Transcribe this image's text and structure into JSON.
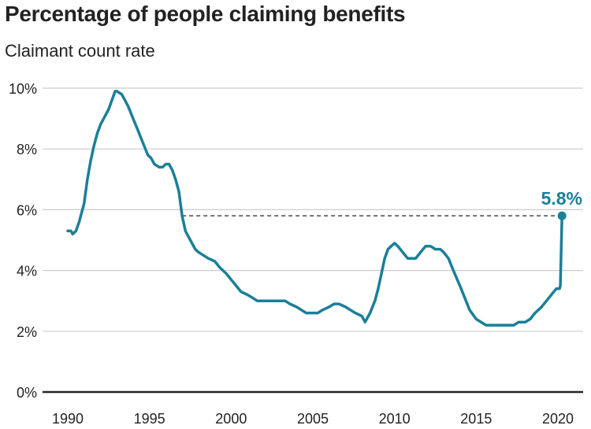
{
  "chart_data": {
    "type": "line",
    "title": "Percentage of people claiming benefits",
    "subtitle": "Claimant count rate",
    "xlabel": "",
    "ylabel": "",
    "xlim": [
      1988.6,
      2021.7
    ],
    "ylim": [
      0,
      10
    ],
    "grid": true,
    "legend": "none",
    "y_ticks": [
      {
        "value": 0,
        "label": "0%"
      },
      {
        "value": 2,
        "label": "2%"
      },
      {
        "value": 4,
        "label": "4%"
      },
      {
        "value": 6,
        "label": "6%"
      },
      {
        "value": 8,
        "label": "8%"
      },
      {
        "value": 10,
        "label": "10%"
      }
    ],
    "x_ticks": [
      {
        "value": 1990,
        "label": "1990"
      },
      {
        "value": 1995,
        "label": "1995"
      },
      {
        "value": 2000,
        "label": "2000"
      },
      {
        "value": 2005,
        "label": "2005"
      },
      {
        "value": 2010,
        "label": "2010"
      },
      {
        "value": 2015,
        "label": "2015"
      },
      {
        "value": 2020,
        "label": "2020"
      }
    ],
    "series": [
      {
        "name": "Claimant count rate",
        "color": "#1b7f98",
        "x": [
          1990.0,
          1990.2,
          1990.3,
          1990.5,
          1990.7,
          1991.0,
          1991.2,
          1991.4,
          1991.6,
          1991.8,
          1992.0,
          1992.3,
          1992.5,
          1992.7,
          1992.9,
          1993.0,
          1993.3,
          1993.5,
          1993.7,
          1994.0,
          1994.3,
          1994.6,
          1994.9,
          1995.1,
          1995.3,
          1995.6,
          1995.8,
          1996.0,
          1996.2,
          1996.4,
          1996.6,
          1996.8,
          1997.0,
          1997.2,
          1997.5,
          1997.8,
          1998.0,
          1998.3,
          1998.6,
          1999.0,
          1999.3,
          1999.7,
          2000.0,
          2000.3,
          2000.6,
          2001.0,
          2001.3,
          2001.6,
          2002.0,
          2002.3,
          2002.6,
          2003.0,
          2003.3,
          2003.6,
          2004.0,
          2004.3,
          2004.6,
          2005.0,
          2005.3,
          2005.6,
          2006.0,
          2006.3,
          2006.6,
          2007.0,
          2007.3,
          2007.6,
          2008.0,
          2008.2,
          2008.5,
          2008.8,
          2009.0,
          2009.2,
          2009.4,
          2009.6,
          2009.8,
          2010.0,
          2010.2,
          2010.5,
          2010.8,
          2011.0,
          2011.3,
          2011.6,
          2011.9,
          2012.2,
          2012.5,
          2012.8,
          2013.0,
          2013.3,
          2013.6,
          2014.0,
          2014.3,
          2014.6,
          2015.0,
          2015.3,
          2015.6,
          2016.0,
          2016.3,
          2016.6,
          2017.0,
          2017.3,
          2017.6,
          2018.0,
          2018.3,
          2018.6,
          2019.0,
          2019.3,
          2019.6,
          2019.9,
          2020.1,
          2020.15,
          2020.25
        ],
        "values": [
          5.3,
          5.3,
          5.2,
          5.3,
          5.6,
          6.2,
          7.0,
          7.6,
          8.1,
          8.5,
          8.8,
          9.1,
          9.3,
          9.6,
          9.9,
          9.9,
          9.8,
          9.6,
          9.4,
          9.0,
          8.6,
          8.2,
          7.8,
          7.7,
          7.5,
          7.4,
          7.4,
          7.5,
          7.5,
          7.3,
          7.0,
          6.6,
          5.8,
          5.3,
          5.0,
          4.7,
          4.6,
          4.5,
          4.4,
          4.3,
          4.1,
          3.9,
          3.7,
          3.5,
          3.3,
          3.2,
          3.1,
          3.0,
          3.0,
          3.0,
          3.0,
          3.0,
          3.0,
          2.9,
          2.8,
          2.7,
          2.6,
          2.6,
          2.6,
          2.7,
          2.8,
          2.9,
          2.9,
          2.8,
          2.7,
          2.6,
          2.5,
          2.3,
          2.6,
          3.0,
          3.4,
          3.9,
          4.4,
          4.7,
          4.8,
          4.9,
          4.8,
          4.6,
          4.4,
          4.4,
          4.4,
          4.6,
          4.8,
          4.8,
          4.7,
          4.7,
          4.6,
          4.4,
          4.0,
          3.5,
          3.1,
          2.7,
          2.4,
          2.3,
          2.2,
          2.2,
          2.2,
          2.2,
          2.2,
          2.2,
          2.3,
          2.3,
          2.4,
          2.6,
          2.8,
          3.0,
          3.2,
          3.4,
          3.4,
          3.5,
          5.8
        ]
      }
    ],
    "reference_line": {
      "style": "dashed",
      "value": 5.8,
      "from_x": 1997.0,
      "to_x": 2020.25
    },
    "annotations": [
      {
        "label": "5.8%",
        "x": 2020.25,
        "y": 5.8,
        "marker": "dot"
      }
    ]
  }
}
